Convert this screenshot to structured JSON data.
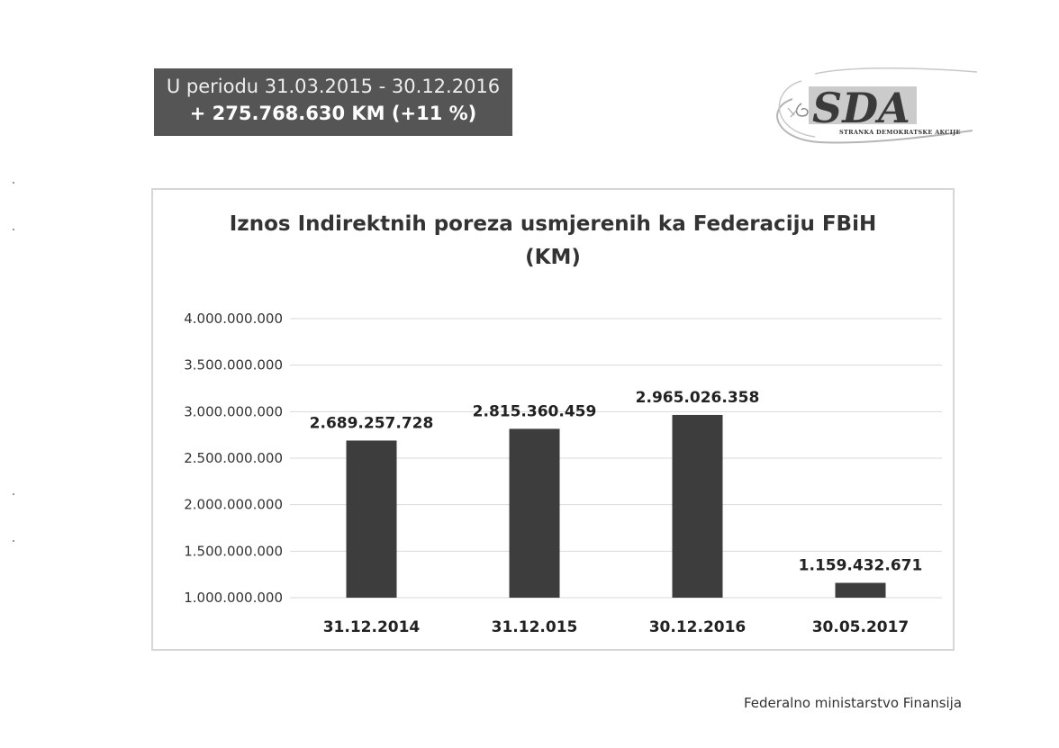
{
  "banner": {
    "line1": "U periodu 31.03.2015 - 30.12.2016",
    "line2": "+ 275.768.630 KM (+11 %)",
    "background": "#555555"
  },
  "logo": {
    "wordmark": "SDA",
    "subtitle": "STRANKA DEMOKRATSKE AKCIJE"
  },
  "footer": {
    "text": "Federalno ministarstvo Finansija"
  },
  "chart_data": {
    "type": "bar",
    "title_line1": "Iznos Indirektnih poreza usmjerenih ka Federaciju FBiH",
    "title_line2": "(KM)",
    "categories": [
      "31.12.2014",
      "31.12.015",
      "30.12.2016",
      "30.05.2017"
    ],
    "values": [
      2689257728,
      2815360459,
      2965026358,
      1159432671
    ],
    "data_labels": [
      "2.689.257.728",
      "2.815.360.459",
      "2.965.026.358",
      "1.159.432.671"
    ],
    "y_ticks": [
      1000000000,
      1500000000,
      2000000000,
      2500000000,
      3000000000,
      3500000000,
      4000000000
    ],
    "y_tick_labels": [
      "1.000.000.000",
      "1.500.000.000",
      "2.000.000.000",
      "2.500.000.000",
      "3.000.000.000",
      "3.500.000.000",
      "4.000.000.000"
    ],
    "ylim": [
      1000000000,
      4000000000
    ],
    "xlabel": "",
    "ylabel": "",
    "grid": true,
    "legend": "none",
    "bar_color": "#3d3d3d",
    "grid_color": "#d9d9d9"
  }
}
